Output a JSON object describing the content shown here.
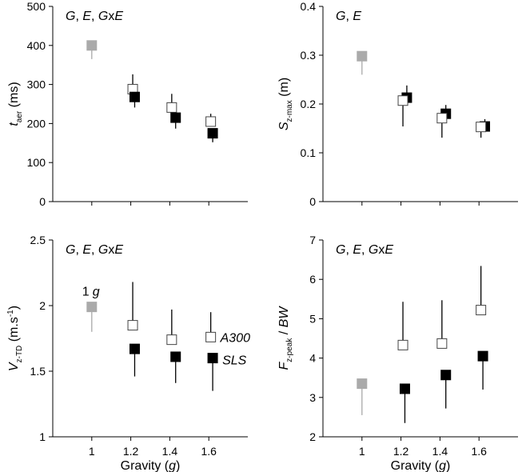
{
  "colors": {
    "control": "#aaaaaa",
    "a300": "#ffffff",
    "sls": "#000000",
    "axis": "#000000"
  },
  "chart_data": [
    {
      "id": "A",
      "type": "scatter",
      "title": "",
      "ylabel": {
        "main": "t",
        "sub": "aer",
        "unit": " (ms)"
      },
      "xlabel": {
        "main": "Gravity (",
        "italic": "g",
        "close": ")",
        "visible": false
      },
      "ylim": [
        0,
        500
      ],
      "yticks": [
        0,
        100,
        200,
        300,
        400,
        500
      ],
      "ytick_labels": [
        "0",
        "100",
        "200",
        "300",
        "400",
        "500"
      ],
      "xlim": [
        0.8,
        1.8
      ],
      "xticks": [
        1.0,
        1.2,
        1.4,
        1.6
      ],
      "xtick_labels": [],
      "annotation": {
        "parts": [
          "G",
          ", ",
          "E",
          ", ",
          "G",
          "x",
          "E"
        ]
      },
      "series": [
        {
          "name": "1 g",
          "role": "control",
          "errdir": "down",
          "points": [
            {
              "x": 1.0,
              "y": 400,
              "err": 35
            }
          ]
        },
        {
          "name": "A300",
          "role": "a300",
          "errdir": "up",
          "points": [
            {
              "x": 1.21,
              "y": 288,
              "err": 38
            },
            {
              "x": 1.41,
              "y": 241,
              "err": 35
            },
            {
              "x": 1.61,
              "y": 205,
              "err": 20
            }
          ]
        },
        {
          "name": "SLS",
          "role": "sls",
          "errdir": "down",
          "points": [
            {
              "x": 1.22,
              "y": 268,
              "err": 27
            },
            {
              "x": 1.43,
              "y": 215,
              "err": 28
            },
            {
              "x": 1.62,
              "y": 175,
              "err": 23
            }
          ]
        }
      ]
    },
    {
      "id": "B",
      "type": "scatter",
      "title": "",
      "ylabel": {
        "main": "S",
        "sub": "z-max",
        "unit": " (m)"
      },
      "xlabel": {
        "main": "Gravity (",
        "italic": "g",
        "close": ")",
        "visible": false
      },
      "ylim": [
        0,
        0.4
      ],
      "yticks": [
        0,
        0.1,
        0.2,
        0.3,
        0.4
      ],
      "ytick_labels": [
        "0",
        "0.1",
        "0.2",
        "0.3",
        "0.4"
      ],
      "xlim": [
        0.8,
        1.8
      ],
      "xticks": [
        1.0,
        1.2,
        1.4,
        1.6
      ],
      "xtick_labels": [],
      "annotation": {
        "parts": [
          "G",
          ", ",
          "E"
        ]
      },
      "series": [
        {
          "name": "1 g",
          "role": "control",
          "errdir": "down",
          "points": [
            {
              "x": 1.0,
              "y": 0.298,
              "err": 0.038
            }
          ]
        },
        {
          "name": "SLS",
          "role": "sls",
          "errdir": "up",
          "points": [
            {
              "x": 1.23,
              "y": 0.213,
              "err": 0.025
            },
            {
              "x": 1.43,
              "y": 0.18,
              "err": 0.018
            },
            {
              "x": 1.63,
              "y": 0.154,
              "err": 0.015
            }
          ]
        },
        {
          "name": "A300",
          "role": "a300",
          "errdir": "down",
          "points": [
            {
              "x": 1.21,
              "y": 0.207,
              "err": 0.053
            },
            {
              "x": 1.41,
              "y": 0.171,
              "err": 0.04
            },
            {
              "x": 1.61,
              "y": 0.153,
              "err": 0.022
            }
          ]
        }
      ]
    },
    {
      "id": "C",
      "type": "scatter",
      "title": "",
      "ylabel": {
        "main": "V",
        "sub": "z-TD",
        "unit": " (m.s",
        "sup": "-1",
        "close": ")"
      },
      "xlabel": {
        "main": "Gravity (",
        "italic": "g",
        "close": ")",
        "visible": true
      },
      "ylim": [
        1,
        2.5
      ],
      "yticks": [
        1,
        1.5,
        2,
        2.5
      ],
      "ytick_labels": [
        "1",
        "1.5",
        "2",
        "2.5"
      ],
      "xlim": [
        0.8,
        1.8
      ],
      "xticks": [
        1.0,
        1.2,
        1.4,
        1.6
      ],
      "xtick_labels": [
        "1",
        "1.2",
        "1.4",
        "1.6"
      ],
      "annotation": {
        "parts": [
          "G",
          ", ",
          "E",
          ", ",
          "G",
          "x",
          "E"
        ]
      },
      "legend_labels": {
        "control_num": "1",
        "control_unit": "g",
        "a300": "A300",
        "sls": "SLS"
      },
      "series": [
        {
          "name": "1 g",
          "role": "control",
          "errdir": "down",
          "points": [
            {
              "x": 1.0,
              "y": 1.99,
              "err": 0.19
            }
          ]
        },
        {
          "name": "A300",
          "role": "a300",
          "errdir": "up",
          "points": [
            {
              "x": 1.21,
              "y": 1.85,
              "err": 0.33
            },
            {
              "x": 1.41,
              "y": 1.74,
              "err": 0.23
            },
            {
              "x": 1.61,
              "y": 1.76,
              "err": 0.19
            }
          ]
        },
        {
          "name": "SLS",
          "role": "sls",
          "errdir": "down",
          "points": [
            {
              "x": 1.22,
              "y": 1.67,
              "err": 0.21
            },
            {
              "x": 1.43,
              "y": 1.61,
              "err": 0.2
            },
            {
              "x": 1.62,
              "y": 1.6,
              "err": 0.25
            }
          ]
        }
      ]
    },
    {
      "id": "D",
      "type": "scatter",
      "title": "",
      "ylabel": {
        "main": "F",
        "sub": "z-peak",
        "unit": " / ",
        "tail": "BW"
      },
      "xlabel": {
        "main": "Gravity (",
        "italic": "g",
        "close": ")",
        "visible": true
      },
      "ylim": [
        2,
        7
      ],
      "yticks": [
        2,
        3,
        4,
        5,
        6,
        7
      ],
      "ytick_labels": [
        "2",
        "3",
        "4",
        "5",
        "6",
        "7"
      ],
      "xlim": [
        0.8,
        1.8
      ],
      "xticks": [
        1.0,
        1.2,
        1.4,
        1.6
      ],
      "xtick_labels": [
        "1",
        "1.2",
        "1.4",
        "1.6"
      ],
      "annotation": {
        "parts": [
          "G",
          ", ",
          "E",
          ", ",
          "G",
          "x",
          "E"
        ]
      },
      "series": [
        {
          "name": "1 g",
          "role": "control",
          "errdir": "down",
          "points": [
            {
              "x": 1.0,
              "y": 3.35,
              "err": 0.8
            }
          ]
        },
        {
          "name": "A300",
          "role": "a300",
          "errdir": "up",
          "points": [
            {
              "x": 1.21,
              "y": 4.33,
              "err": 1.1
            },
            {
              "x": 1.41,
              "y": 4.37,
              "err": 1.1
            },
            {
              "x": 1.61,
              "y": 5.22,
              "err": 1.12
            }
          ]
        },
        {
          "name": "SLS",
          "role": "sls",
          "errdir": "down",
          "points": [
            {
              "x": 1.22,
              "y": 3.22,
              "err": 0.87
            },
            {
              "x": 1.43,
              "y": 3.57,
              "err": 0.85
            },
            {
              "x": 1.62,
              "y": 4.05,
              "err": 0.85
            }
          ]
        }
      ]
    }
  ]
}
